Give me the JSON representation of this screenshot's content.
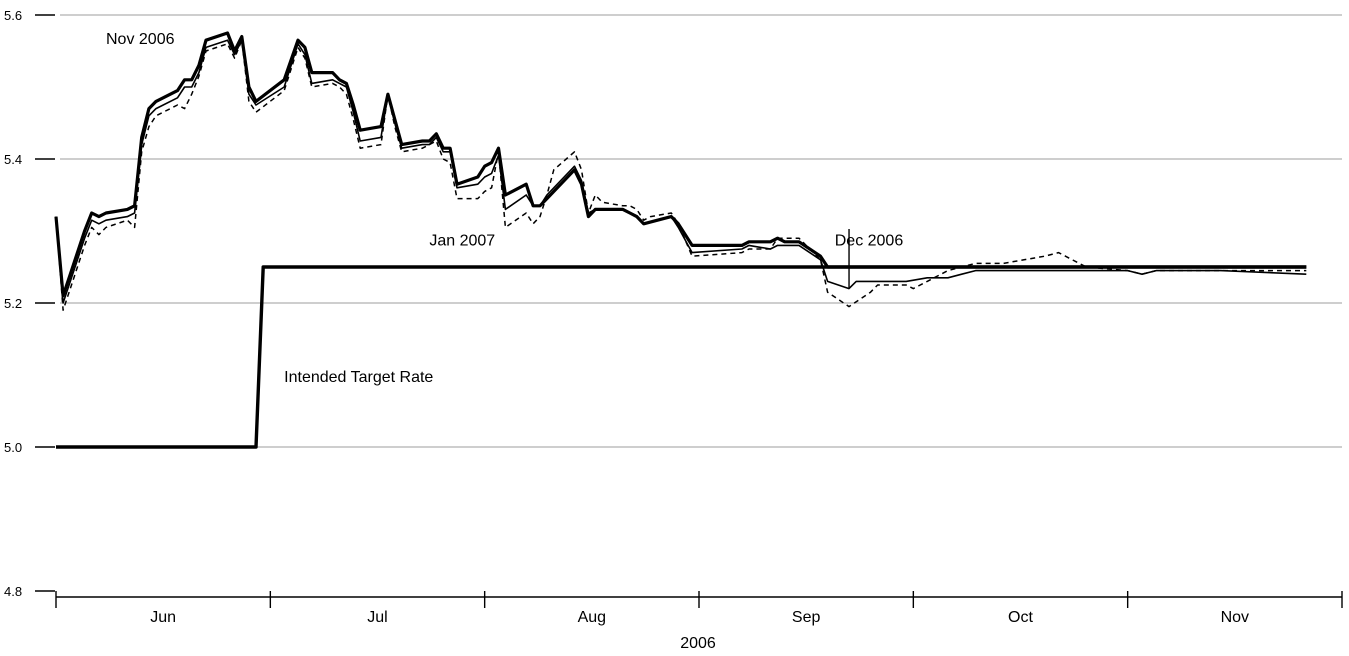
{
  "chart_data": {
    "type": "line",
    "xlabel": "2006",
    "ylabel": "",
    "ylim": [
      4.8,
      5.6
    ],
    "y_ticks": [
      "4.8",
      "5.0",
      "5.2",
      "5.4",
      "5.6"
    ],
    "grid": "horizontal",
    "month_labels": [
      "Jun",
      "Jul",
      "Aug",
      "Sep",
      "Oct",
      "Nov"
    ],
    "series": [
      {
        "name": "Nov 2006",
        "style": "thick",
        "points": [
          [
            "2006-06-01",
            5.32
          ],
          [
            "2006-06-02",
            5.21
          ],
          [
            "2006-06-03",
            5.24
          ],
          [
            "2006-06-05",
            5.3
          ],
          [
            "2006-06-06",
            5.325
          ],
          [
            "2006-06-07",
            5.32
          ],
          [
            "2006-06-08",
            5.325
          ],
          [
            "2006-06-11",
            5.33
          ],
          [
            "2006-06-12",
            5.335
          ],
          [
            "2006-06-13",
            5.43
          ],
          [
            "2006-06-14",
            5.47
          ],
          [
            "2006-06-15",
            5.48
          ],
          [
            "2006-06-18",
            5.495
          ],
          [
            "2006-06-19",
            5.51
          ],
          [
            "2006-06-20",
            5.51
          ],
          [
            "2006-06-21",
            5.53
          ],
          [
            "2006-06-22",
            5.565
          ],
          [
            "2006-06-25",
            5.575
          ],
          [
            "2006-06-26",
            5.55
          ],
          [
            "2006-06-27",
            5.57
          ],
          [
            "2006-06-28",
            5.5
          ],
          [
            "2006-06-29",
            5.48
          ],
          [
            "2006-07-03",
            5.51
          ],
          [
            "2006-07-05",
            5.565
          ],
          [
            "2006-07-06",
            5.555
          ],
          [
            "2006-07-07",
            5.52
          ],
          [
            "2006-07-10",
            5.52
          ],
          [
            "2006-07-11",
            5.51
          ],
          [
            "2006-07-12",
            5.505
          ],
          [
            "2006-07-13",
            5.475
          ],
          [
            "2006-07-14",
            5.44
          ],
          [
            "2006-07-17",
            5.445
          ],
          [
            "2006-07-18",
            5.49
          ],
          [
            "2006-07-19",
            5.455
          ],
          [
            "2006-07-20",
            5.42
          ],
          [
            "2006-07-23",
            5.425
          ],
          [
            "2006-07-24",
            5.425
          ],
          [
            "2006-07-25",
            5.435
          ],
          [
            "2006-07-26",
            5.415
          ],
          [
            "2006-07-27",
            5.415
          ],
          [
            "2006-07-28",
            5.365
          ],
          [
            "2006-07-31",
            5.375
          ],
          [
            "2006-08-01",
            5.39
          ],
          [
            "2006-08-02",
            5.395
          ],
          [
            "2006-08-03",
            5.415
          ],
          [
            "2006-08-04",
            5.35
          ],
          [
            "2006-08-07",
            5.365
          ],
          [
            "2006-08-08",
            5.335
          ],
          [
            "2006-08-09",
            5.335
          ],
          [
            "2006-08-10",
            5.345
          ],
          [
            "2006-08-14",
            5.385
          ],
          [
            "2006-08-15",
            5.365
          ],
          [
            "2006-08-16",
            5.32
          ],
          [
            "2006-08-17",
            5.33
          ],
          [
            "2006-08-21",
            5.33
          ],
          [
            "2006-08-22",
            5.325
          ],
          [
            "2006-08-23",
            5.32
          ],
          [
            "2006-08-24",
            5.31
          ],
          [
            "2006-08-28",
            5.32
          ],
          [
            "2006-08-29",
            5.31
          ],
          [
            "2006-08-31",
            5.28
          ],
          [
            "2006-09-07",
            5.28
          ],
          [
            "2006-09-08",
            5.285
          ],
          [
            "2006-09-11",
            5.285
          ],
          [
            "2006-09-12",
            5.29
          ],
          [
            "2006-09-13",
            5.285
          ],
          [
            "2006-09-15",
            5.285
          ],
          [
            "2006-09-18",
            5.265
          ],
          [
            "2006-09-19",
            5.25
          ],
          [
            "2006-09-20",
            5.25
          ],
          [
            "2006-11-26",
            5.25
          ]
        ]
      },
      {
        "name": "Dec 2006",
        "style": "thin",
        "points": [
          [
            "2006-06-01",
            5.32
          ],
          [
            "2006-06-02",
            5.2
          ],
          [
            "2006-06-03",
            5.23
          ],
          [
            "2006-06-05",
            5.29
          ],
          [
            "2006-06-06",
            5.315
          ],
          [
            "2006-06-07",
            5.31
          ],
          [
            "2006-06-08",
            5.315
          ],
          [
            "2006-06-11",
            5.32
          ],
          [
            "2006-06-12",
            5.325
          ],
          [
            "2006-06-13",
            5.42
          ],
          [
            "2006-06-14",
            5.46
          ],
          [
            "2006-06-15",
            5.47
          ],
          [
            "2006-06-18",
            5.485
          ],
          [
            "2006-06-19",
            5.5
          ],
          [
            "2006-06-20",
            5.5
          ],
          [
            "2006-06-21",
            5.52
          ],
          [
            "2006-06-22",
            5.555
          ],
          [
            "2006-06-25",
            5.565
          ],
          [
            "2006-06-26",
            5.545
          ],
          [
            "2006-06-27",
            5.565
          ],
          [
            "2006-06-28",
            5.49
          ],
          [
            "2006-06-29",
            5.475
          ],
          [
            "2006-07-03",
            5.5
          ],
          [
            "2006-07-05",
            5.56
          ],
          [
            "2006-07-06",
            5.545
          ],
          [
            "2006-07-07",
            5.505
          ],
          [
            "2006-07-10",
            5.51
          ],
          [
            "2006-07-11",
            5.505
          ],
          [
            "2006-07-12",
            5.5
          ],
          [
            "2006-07-13",
            5.465
          ],
          [
            "2006-07-14",
            5.425
          ],
          [
            "2006-07-17",
            5.43
          ],
          [
            "2006-07-18",
            5.49
          ],
          [
            "2006-07-19",
            5.45
          ],
          [
            "2006-07-20",
            5.415
          ],
          [
            "2006-07-23",
            5.42
          ],
          [
            "2006-07-24",
            5.42
          ],
          [
            "2006-07-25",
            5.43
          ],
          [
            "2006-07-26",
            5.41
          ],
          [
            "2006-07-27",
            5.41
          ],
          [
            "2006-07-28",
            5.36
          ],
          [
            "2006-07-31",
            5.365
          ],
          [
            "2006-08-01",
            5.375
          ],
          [
            "2006-08-02",
            5.38
          ],
          [
            "2006-08-03",
            5.405
          ],
          [
            "2006-08-04",
            5.33
          ],
          [
            "2006-08-07",
            5.35
          ],
          [
            "2006-08-08",
            5.335
          ],
          [
            "2006-08-09",
            5.335
          ],
          [
            "2006-08-10",
            5.35
          ],
          [
            "2006-08-14",
            5.39
          ],
          [
            "2006-08-15",
            5.37
          ],
          [
            "2006-08-16",
            5.325
          ],
          [
            "2006-08-17",
            5.33
          ],
          [
            "2006-08-21",
            5.33
          ],
          [
            "2006-08-22",
            5.325
          ],
          [
            "2006-08-23",
            5.32
          ],
          [
            "2006-08-24",
            5.31
          ],
          [
            "2006-08-28",
            5.32
          ],
          [
            "2006-08-29",
            5.305
          ],
          [
            "2006-08-31",
            5.27
          ],
          [
            "2006-09-07",
            5.275
          ],
          [
            "2006-09-08",
            5.28
          ],
          [
            "2006-09-11",
            5.275
          ],
          [
            "2006-09-12",
            5.28
          ],
          [
            "2006-09-13",
            5.28
          ],
          [
            "2006-09-15",
            5.28
          ],
          [
            "2006-09-18",
            5.26
          ],
          [
            "2006-09-19",
            5.23
          ],
          [
            "2006-09-22",
            5.22
          ],
          [
            "2006-09-23",
            5.23
          ],
          [
            "2006-09-30",
            5.23
          ],
          [
            "2006-10-03",
            5.235
          ],
          [
            "2006-10-06",
            5.235
          ],
          [
            "2006-10-08",
            5.24
          ],
          [
            "2006-10-10",
            5.245
          ],
          [
            "2006-10-15",
            5.245
          ],
          [
            "2006-10-20",
            5.245
          ],
          [
            "2006-11-01",
            5.245
          ],
          [
            "2006-11-03",
            5.24
          ],
          [
            "2006-11-05",
            5.245
          ],
          [
            "2006-11-14",
            5.245
          ],
          [
            "2006-11-26",
            5.24
          ]
        ]
      },
      {
        "name": "Jan 2007",
        "style": "dashed",
        "points": [
          [
            "2006-06-01",
            5.32
          ],
          [
            "2006-06-02",
            5.19
          ],
          [
            "2006-06-03",
            5.22
          ],
          [
            "2006-06-05",
            5.28
          ],
          [
            "2006-06-06",
            5.305
          ],
          [
            "2006-06-07",
            5.295
          ],
          [
            "2006-06-08",
            5.305
          ],
          [
            "2006-06-11",
            5.315
          ],
          [
            "2006-06-12",
            5.305
          ],
          [
            "2006-06-13",
            5.41
          ],
          [
            "2006-06-14",
            5.445
          ],
          [
            "2006-06-15",
            5.46
          ],
          [
            "2006-06-18",
            5.475
          ],
          [
            "2006-06-19",
            5.47
          ],
          [
            "2006-06-20",
            5.49
          ],
          [
            "2006-06-21",
            5.515
          ],
          [
            "2006-06-22",
            5.55
          ],
          [
            "2006-06-25",
            5.56
          ],
          [
            "2006-06-26",
            5.54
          ],
          [
            "2006-06-27",
            5.565
          ],
          [
            "2006-06-28",
            5.48
          ],
          [
            "2006-06-29",
            5.465
          ],
          [
            "2006-07-03",
            5.495
          ],
          [
            "2006-07-05",
            5.555
          ],
          [
            "2006-07-06",
            5.54
          ],
          [
            "2006-07-07",
            5.5
          ],
          [
            "2006-07-10",
            5.505
          ],
          [
            "2006-07-11",
            5.5
          ],
          [
            "2006-07-12",
            5.49
          ],
          [
            "2006-07-13",
            5.455
          ],
          [
            "2006-07-14",
            5.415
          ],
          [
            "2006-07-17",
            5.42
          ],
          [
            "2006-07-18",
            5.49
          ],
          [
            "2006-07-19",
            5.445
          ],
          [
            "2006-07-20",
            5.41
          ],
          [
            "2006-07-23",
            5.415
          ],
          [
            "2006-07-24",
            5.42
          ],
          [
            "2006-07-25",
            5.425
          ],
          [
            "2006-07-26",
            5.4
          ],
          [
            "2006-07-27",
            5.395
          ],
          [
            "2006-07-28",
            5.345
          ],
          [
            "2006-07-31",
            5.345
          ],
          [
            "2006-08-01",
            5.355
          ],
          [
            "2006-08-02",
            5.36
          ],
          [
            "2006-08-03",
            5.41
          ],
          [
            "2006-08-04",
            5.305
          ],
          [
            "2006-08-07",
            5.325
          ],
          [
            "2006-08-08",
            5.31
          ],
          [
            "2006-08-09",
            5.32
          ],
          [
            "2006-08-10",
            5.35
          ],
          [
            "2006-08-11",
            5.385
          ],
          [
            "2006-08-14",
            5.41
          ],
          [
            "2006-08-15",
            5.385
          ],
          [
            "2006-08-16",
            5.325
          ],
          [
            "2006-08-17",
            5.35
          ],
          [
            "2006-08-18",
            5.34
          ],
          [
            "2006-08-21",
            5.335
          ],
          [
            "2006-08-22",
            5.335
          ],
          [
            "2006-08-23",
            5.33
          ],
          [
            "2006-08-24",
            5.315
          ],
          [
            "2006-08-25",
            5.32
          ],
          [
            "2006-08-28",
            5.325
          ],
          [
            "2006-08-29",
            5.31
          ],
          [
            "2006-08-31",
            5.265
          ],
          [
            "2006-09-07",
            5.27
          ],
          [
            "2006-09-08",
            5.275
          ],
          [
            "2006-09-11",
            5.275
          ],
          [
            "2006-09-12",
            5.29
          ],
          [
            "2006-09-15",
            5.29
          ],
          [
            "2006-09-18",
            5.26
          ],
          [
            "2006-09-19",
            5.215
          ],
          [
            "2006-09-22",
            5.195
          ],
          [
            "2006-09-25",
            5.215
          ],
          [
            "2006-09-26",
            5.225
          ],
          [
            "2006-09-30",
            5.225
          ],
          [
            "2006-10-01",
            5.22
          ],
          [
            "2006-10-03",
            5.23
          ],
          [
            "2006-10-06",
            5.245
          ],
          [
            "2006-10-08",
            5.25
          ],
          [
            "2006-10-10",
            5.255
          ],
          [
            "2006-10-14",
            5.255
          ],
          [
            "2006-10-17",
            5.26
          ],
          [
            "2006-10-20",
            5.265
          ],
          [
            "2006-10-22",
            5.27
          ],
          [
            "2006-10-24",
            5.26
          ],
          [
            "2006-10-26",
            5.25
          ],
          [
            "2006-11-01",
            5.245
          ],
          [
            "2006-11-03",
            5.24
          ],
          [
            "2006-11-05",
            5.245
          ],
          [
            "2006-11-26",
            5.245
          ]
        ]
      },
      {
        "name": "Intended Target Rate",
        "style": "target",
        "points": [
          [
            "2006-06-01",
            5.0
          ],
          [
            "2006-06-29",
            5.0
          ],
          [
            "2006-06-30",
            5.25
          ],
          [
            "2006-11-26",
            5.25
          ]
        ]
      }
    ],
    "annotations": [
      {
        "text": "Nov 2006",
        "date": "2006-06-08",
        "y": 5.56
      },
      {
        "text": "Jan 2007",
        "date": "2006-07-24",
        "y": 5.28
      },
      {
        "text": "Dec 2006",
        "date": "2006-09-20",
        "y": 5.28
      },
      {
        "text": "Intended Target Rate",
        "date": "2006-07-03",
        "y": 5.09
      }
    ]
  }
}
